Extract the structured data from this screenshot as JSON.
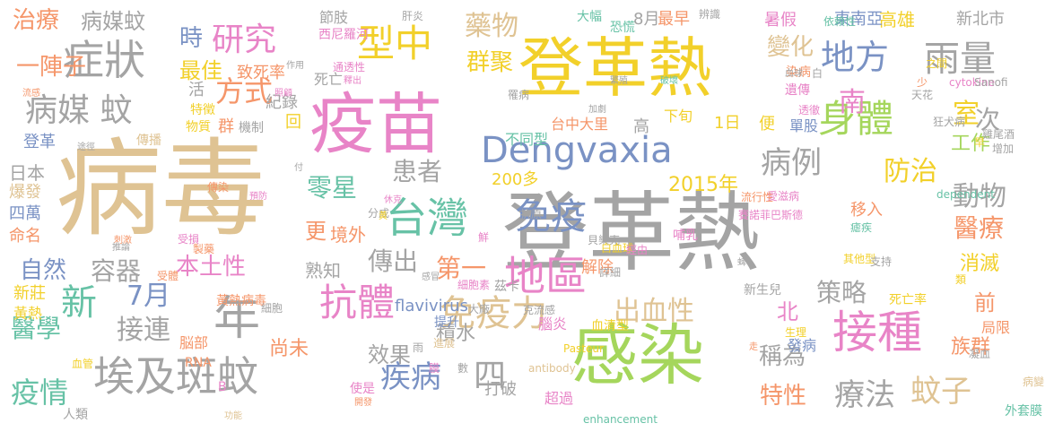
{
  "palette": {
    "tan": "#dfc393",
    "green": "#a5d65c",
    "grey": "#a4a4a4",
    "yellow": "#f2d02a",
    "orange": "#f5966a",
    "blue": "#7a92c4",
    "pink": "#e884c7",
    "teal": "#67c2a6"
  },
  "words": [
    {
      "text": "病毒",
      "color": "tan"
    },
    {
      "text": "登革熱",
      "color": "grey"
    },
    {
      "text": "登革熱",
      "color": "yellow"
    },
    {
      "text": "感染",
      "color": "green"
    },
    {
      "text": "疫苗",
      "color": "pink"
    },
    {
      "text": "Dengvaxia",
      "color": "blue"
    },
    {
      "text": "接種",
      "color": "pink"
    },
    {
      "text": "埃及斑蚊",
      "color": "grey"
    },
    {
      "text": "台灣",
      "color": "teal"
    },
    {
      "text": "症狀",
      "color": "grey"
    },
    {
      "text": "地區",
      "color": "pink"
    },
    {
      "text": "免疫",
      "color": "blue"
    },
    {
      "text": "抗體",
      "color": "pink"
    },
    {
      "text": "免疫力",
      "color": "tan"
    },
    {
      "text": "身體",
      "color": "green"
    },
    {
      "text": "病媒 蚊",
      "color": "grey"
    },
    {
      "text": "研究",
      "color": "pink"
    },
    {
      "text": "型中",
      "color": "yellow"
    },
    {
      "text": "雨量",
      "color": "grey"
    },
    {
      "text": "年",
      "color": "grey"
    },
    {
      "text": "地方",
      "color": "blue"
    },
    {
      "text": "病例",
      "color": "grey"
    },
    {
      "text": "蚊子",
      "color": "tan"
    },
    {
      "text": "疾病",
      "color": "blue"
    },
    {
      "text": "療法",
      "color": "grey"
    },
    {
      "text": "新",
      "color": "teal"
    },
    {
      "text": "防治",
      "color": "yellow"
    },
    {
      "text": "藥物",
      "color": "tan"
    },
    {
      "text": "群聚",
      "color": "yellow"
    },
    {
      "text": "方式",
      "color": "orange"
    },
    {
      "text": "本土性",
      "color": "pink"
    },
    {
      "text": "2015年",
      "color": "yellow"
    },
    {
      "text": "傳出",
      "color": "grey"
    },
    {
      "text": "四",
      "color": "grey"
    },
    {
      "text": "動物",
      "color": "grey"
    },
    {
      "text": "疫情",
      "color": "teal"
    },
    {
      "text": "治療",
      "color": "orange"
    },
    {
      "text": "病媒蚊",
      "color": "grey"
    },
    {
      "text": "患者",
      "color": "grey"
    },
    {
      "text": "零星",
      "color": "teal"
    },
    {
      "text": "7月",
      "color": "blue"
    },
    {
      "text": "接連",
      "color": "grey"
    },
    {
      "text": "醫學",
      "color": "teal"
    },
    {
      "text": "室",
      "color": "yellow"
    },
    {
      "text": "醫療",
      "color": "orange"
    },
    {
      "text": "出血性",
      "color": "tan"
    },
    {
      "text": "策略",
      "color": "grey"
    },
    {
      "text": "時",
      "color": "blue"
    },
    {
      "text": "自然",
      "color": "blue"
    },
    {
      "text": "容器",
      "color": "grey"
    },
    {
      "text": "第一",
      "color": "orange"
    },
    {
      "text": "變化",
      "color": "tan"
    },
    {
      "text": "工作",
      "color": "green"
    },
    {
      "text": "稱為",
      "color": "grey"
    },
    {
      "text": "特性",
      "color": "orange"
    },
    {
      "text": "最佳",
      "color": "yellow"
    },
    {
      "text": "效果",
      "color": "grey"
    },
    {
      "text": "南",
      "color": "pink"
    },
    {
      "text": "次",
      "color": "grey"
    },
    {
      "text": "前",
      "color": "orange"
    },
    {
      "text": "北",
      "color": "pink"
    },
    {
      "text": "更",
      "color": "orange"
    },
    {
      "text": "族群",
      "color": "orange"
    },
    {
      "text": "消滅",
      "color": "yellow"
    },
    {
      "text": "積水",
      "color": "grey"
    },
    {
      "text": "熟知",
      "color": "grey"
    },
    {
      "text": "境外",
      "color": "orange"
    },
    {
      "text": "移入",
      "color": "orange"
    },
    {
      "text": "尚未",
      "color": "orange"
    },
    {
      "text": "flavivirus",
      "color": "blue"
    },
    {
      "text": "8月",
      "color": "grey"
    },
    {
      "text": "高雄",
      "color": "yellow"
    },
    {
      "text": "東南亞",
      "color": "blue"
    },
    {
      "text": "暑假",
      "color": "pink"
    },
    {
      "text": "新北市",
      "color": "grey"
    },
    {
      "text": "200多",
      "color": "yellow"
    },
    {
      "text": "台中大里",
      "color": "orange"
    },
    {
      "text": "致死率",
      "color": "orange"
    },
    {
      "text": "紀錄",
      "color": "grey"
    },
    {
      "text": "死亡",
      "color": "grey"
    },
    {
      "text": "解除",
      "color": "orange"
    },
    {
      "text": "腦炎",
      "color": "pink"
    },
    {
      "text": "超過",
      "color": "pink"
    },
    {
      "text": "打破",
      "color": "grey"
    },
    {
      "text": "發病",
      "color": "blue"
    },
    {
      "text": "局限",
      "color": "orange"
    },
    {
      "text": "日本",
      "color": "grey"
    },
    {
      "text": "爆發",
      "color": "tan"
    },
    {
      "text": "四萬",
      "color": "blue"
    },
    {
      "text": "命名",
      "color": "orange"
    },
    {
      "text": "新莊",
      "color": "yellow"
    },
    {
      "text": "黃熱",
      "color": "yellow"
    },
    {
      "text": "登革",
      "color": "blue"
    },
    {
      "text": "一陣子",
      "color": "orange"
    },
    {
      "text": "活",
      "color": "grey"
    },
    {
      "text": "群",
      "color": "orange"
    },
    {
      "text": "回",
      "color": "yellow"
    },
    {
      "text": "便",
      "color": "yellow"
    },
    {
      "text": "高",
      "color": "grey"
    },
    {
      "text": "1日",
      "color": "yellow"
    },
    {
      "text": "最早",
      "color": "orange"
    },
    {
      "text": "下旬",
      "color": "yellow"
    },
    {
      "text": "染病",
      "color": "orange"
    },
    {
      "text": "遺傳",
      "color": "pink"
    },
    {
      "text": "單股",
      "color": "blue"
    },
    {
      "text": "哺乳",
      "color": "pink"
    },
    {
      "text": "茲卡",
      "color": "grey"
    },
    {
      "text": "血清型",
      "color": "yellow"
    },
    {
      "text": "提升",
      "color": "blue"
    },
    {
      "text": "脳部",
      "color": "orange"
    },
    {
      "text": "節肢",
      "color": "grey"
    },
    {
      "text": "西尼羅河",
      "color": "pink"
    },
    {
      "text": "恐慌",
      "color": "teal"
    },
    {
      "text": "大幅",
      "color": "teal"
    },
    {
      "text": "機制",
      "color": "grey"
    },
    {
      "text": "特徵",
      "color": "yellow"
    },
    {
      "text": "物質",
      "color": "yellow"
    },
    {
      "text": "傳播",
      "color": "tan"
    },
    {
      "text": "不同型",
      "color": "teal"
    },
    {
      "text": "罹病",
      "color": "grey"
    },
    {
      "text": "死亡率",
      "color": "yellow"
    },
    {
      "text": "新生兒",
      "color": "grey"
    },
    {
      "text": "黃熱病毒",
      "color": "orange"
    },
    {
      "text": "抗原",
      "color": "grey"
    },
    {
      "text": "分成",
      "color": "grey"
    },
    {
      "text": "人類",
      "color": "grey"
    },
    {
      "text": "外套膜",
      "color": "teal"
    },
    {
      "text": "病變",
      "color": "tan"
    },
    {
      "text": "少",
      "color": "orange"
    },
    {
      "text": "之間",
      "color": "yellow"
    },
    {
      "text": "透徹",
      "color": "pink"
    },
    {
      "text": "依賴性",
      "color": "teal"
    },
    {
      "text": "肝炎",
      "color": "grey"
    },
    {
      "text": "辨識",
      "color": "grey"
    },
    {
      "text": "白",
      "color": "grey"
    },
    {
      "text": "cytokine",
      "color": "pink"
    },
    {
      "text": "Sanofi",
      "color": "grey"
    },
    {
      "text": "天花",
      "color": "grey"
    },
    {
      "text": "增加",
      "color": "grey"
    },
    {
      "text": "狂犬病",
      "color": "grey"
    },
    {
      "text": "雞尾酒",
      "color": "grey"
    },
    {
      "text": "愛滋病",
      "color": "pink"
    },
    {
      "text": "dependent",
      "color": "teal"
    },
    {
      "text": "賽諾菲巴斯德",
      "color": "pink"
    },
    {
      "text": "瘧疾",
      "color": "teal"
    },
    {
      "text": "其他型",
      "color": "yellow"
    },
    {
      "text": "支持",
      "color": "grey"
    },
    {
      "text": "類",
      "color": "yellow"
    },
    {
      "text": "走",
      "color": "orange"
    },
    {
      "text": "凝血",
      "color": "grey"
    },
    {
      "text": "Pasteur",
      "color": "yellow"
    },
    {
      "text": "antibody",
      "color": "tan"
    },
    {
      "text": "enhancement",
      "color": "teal"
    },
    {
      "text": "克流感",
      "color": "grey"
    },
    {
      "text": "細胞素",
      "color": "pink"
    },
    {
      "text": "詳細",
      "color": "grey"
    },
    {
      "text": "大廠",
      "color": "grey"
    },
    {
      "text": "鮮",
      "color": "pink"
    },
    {
      "text": "貝樂克",
      "color": "grey"
    },
    {
      "text": "白血球",
      "color": "yellow"
    },
    {
      "text": "經由",
      "color": "pink"
    },
    {
      "text": "細胞",
      "color": "grey"
    },
    {
      "text": "RNA",
      "color": "orange"
    },
    {
      "text": "血管",
      "color": "yellow"
    },
    {
      "text": "進展",
      "color": "tan"
    },
    {
      "text": "膜",
      "color": "pink"
    },
    {
      "text": "數",
      "color": "grey"
    },
    {
      "text": "使是",
      "color": "pink"
    },
    {
      "text": "開發",
      "color": "orange"
    },
    {
      "text": "功能",
      "color": "tan"
    },
    {
      "text": "B",
      "color": "pink"
    },
    {
      "text": "黃",
      "color": "yellow"
    },
    {
      "text": "休克",
      "color": "pink"
    },
    {
      "text": "刺激",
      "color": "orange"
    },
    {
      "text": "受損",
      "color": "pink"
    },
    {
      "text": "製藥",
      "color": "orange"
    },
    {
      "text": "推論",
      "color": "grey"
    },
    {
      "text": "受體",
      "color": "orange"
    },
    {
      "text": "傳染",
      "color": "orange"
    },
    {
      "text": "預防",
      "color": "pink"
    },
    {
      "text": "付",
      "color": "grey"
    },
    {
      "text": "流感",
      "color": "orange"
    },
    {
      "text": "照顧",
      "color": "pink"
    },
    {
      "text": "作用",
      "color": "grey"
    },
    {
      "text": "途徑",
      "color": "grey"
    },
    {
      "text": "通透性",
      "color": "pink"
    },
    {
      "text": "釋出",
      "color": "pink"
    },
    {
      "text": "加劇",
      "color": "grey"
    },
    {
      "text": "繁殖",
      "color": "grey"
    },
    {
      "text": "破壞",
      "color": "teal"
    },
    {
      "text": "血球",
      "color": "grey"
    },
    {
      "text": "早",
      "color": "yellow"
    },
    {
      "text": "流行性",
      "color": "orange"
    },
    {
      "text": "蜱",
      "color": "grey"
    },
    {
      "text": "生理",
      "color": "yellow"
    },
    {
      "text": "感冒",
      "color": "grey"
    },
    {
      "text": "雨",
      "color": "grey"
    },
    {
      "text": "病",
      "color": "orange"
    },
    {
      "text": "偶",
      "color": "grey"
    }
  ]
}
